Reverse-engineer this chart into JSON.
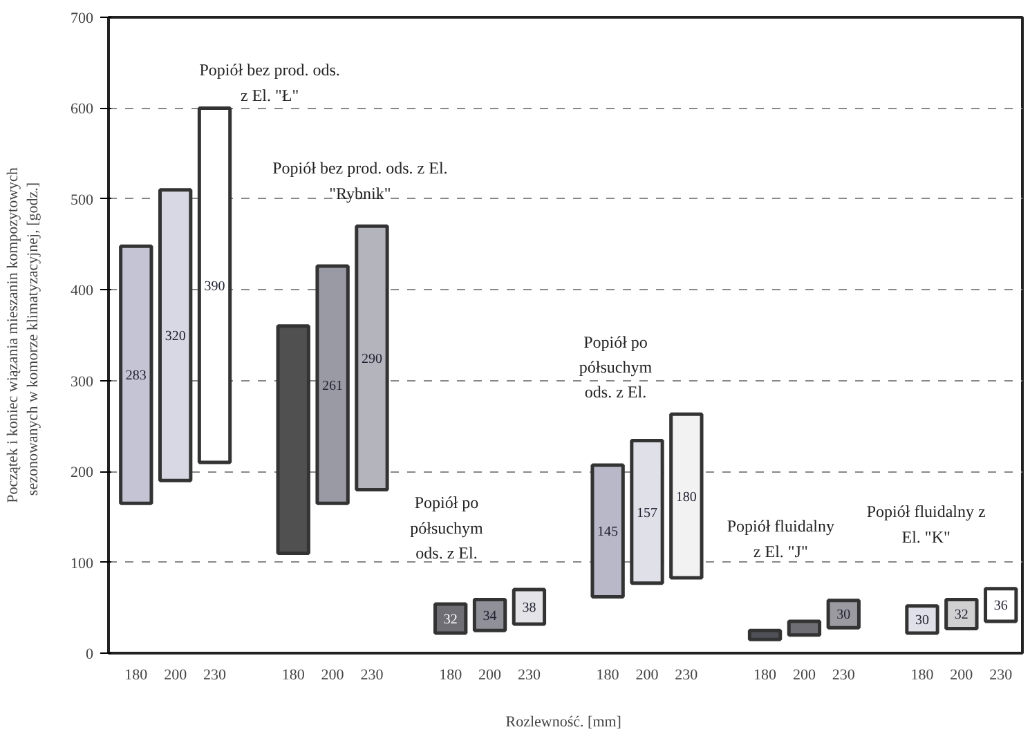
{
  "chart_data": {
    "type": "bar",
    "xlabel": "Rozlewność.  [mm]",
    "ylabel": "Początek i koniec wiązania mieszanin kompozytowych\nsezonowanych  w komorze klimatyzacyjnej,  [godz.]",
    "categories": [
      "180",
      "200",
      "230",
      "180",
      "200",
      "230",
      "180",
      "200",
      "230",
      "180",
      "200",
      "230",
      "180",
      "200",
      "230",
      "180",
      "200",
      "230"
    ],
    "base": [
      165,
      190,
      210,
      110,
      165,
      180,
      22,
      25,
      32,
      62,
      77,
      83,
      15,
      20,
      28,
      22,
      27,
      35
    ],
    "values": [
      283,
      320,
      390,
      250,
      261,
      290,
      32,
      34,
      38,
      145,
      157,
      180,
      10,
      15,
      30,
      30,
      32,
      36
    ],
    "value_labels": [
      "283",
      "320",
      "390",
      null,
      "261",
      "290",
      "32",
      "34",
      "38",
      "145",
      "157",
      "180",
      null,
      null,
      "30",
      "30",
      "32",
      "36"
    ],
    "colors": [
      "#c4c4d4",
      "#d8d8e4",
      "#ffffff",
      "#505050",
      "#9a9aa4",
      "#b4b4bc",
      "#6e6e74",
      "#909098",
      "#e4e4e8",
      "#b8b8c8",
      "#e0e0e8",
      "#f2f2f2",
      "#505058",
      "#6e6e74",
      "#9a9aa0",
      "#e0e0e8",
      "#d0d0d0",
      "#ffffff"
    ],
    "ylim": [
      0,
      700
    ],
    "yticks": [
      0,
      100,
      200,
      300,
      400,
      500,
      600,
      700
    ],
    "grid": "y",
    "annotations": [
      "Popiół bez prod. ods.\nz El. \"Ł\"",
      "Popiół bez prod. ods. z El.\n\"Rybnik\"",
      "Popiół po\npółsuchym\nods. z El.",
      "Popiół po\npółsuchym\nods. z El.",
      "Popiół fluidalny\nz El. \"J\"",
      "Popiół fluidalny z\nEl. \"K\""
    ]
  }
}
